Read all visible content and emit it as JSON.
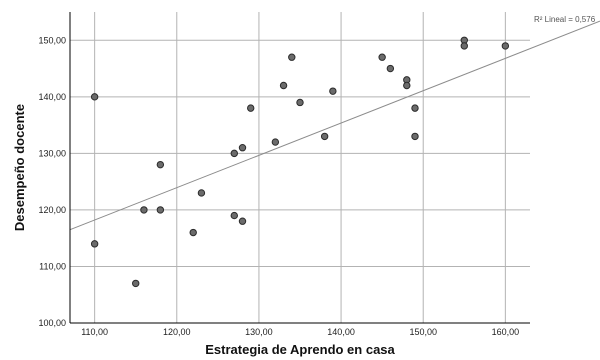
{
  "chart_data": {
    "type": "scatter",
    "xlabel": "Estrategia de Aprendo en casa",
    "ylabel": "Desempeño docente",
    "xlim": [
      107,
      163
    ],
    "ylim": [
      100,
      155
    ],
    "x_ticks": [
      "110,00",
      "120,00",
      "130,00",
      "140,00",
      "150,00",
      "160,00"
    ],
    "y_ticks": [
      "100,00",
      "110,00",
      "120,00",
      "130,00",
      "140,00",
      "150,00"
    ],
    "grid": true,
    "fit_line": {
      "label": "R² Lineal = 0,576",
      "y_at_xmin": 116.5,
      "y_at_xmax": 152.5
    },
    "points": [
      {
        "x": 110,
        "y": 140
      },
      {
        "x": 110,
        "y": 114
      },
      {
        "x": 115,
        "y": 107
      },
      {
        "x": 116,
        "y": 120
      },
      {
        "x": 118,
        "y": 128
      },
      {
        "x": 118,
        "y": 120
      },
      {
        "x": 122,
        "y": 116
      },
      {
        "x": 123,
        "y": 123
      },
      {
        "x": 127,
        "y": 130
      },
      {
        "x": 127,
        "y": 119
      },
      {
        "x": 128,
        "y": 131
      },
      {
        "x": 128,
        "y": 118
      },
      {
        "x": 129,
        "y": 138
      },
      {
        "x": 132,
        "y": 132
      },
      {
        "x": 133,
        "y": 142
      },
      {
        "x": 134,
        "y": 147
      },
      {
        "x": 135,
        "y": 139
      },
      {
        "x": 138,
        "y": 133
      },
      {
        "x": 139,
        "y": 141
      },
      {
        "x": 145,
        "y": 147
      },
      {
        "x": 146,
        "y": 145
      },
      {
        "x": 148,
        "y": 143
      },
      {
        "x": 148,
        "y": 142
      },
      {
        "x": 149,
        "y": 138
      },
      {
        "x": 149,
        "y": 133
      },
      {
        "x": 155,
        "y": 150
      },
      {
        "x": 155,
        "y": 149
      },
      {
        "x": 160,
        "y": 149
      }
    ],
    "colors": {
      "point_fill": "#6b6b6b",
      "point_stroke": "#2b2b2b",
      "grid": "#b3b3b3",
      "axis": "#000000",
      "fit_line": "#8c8c8c"
    }
  }
}
